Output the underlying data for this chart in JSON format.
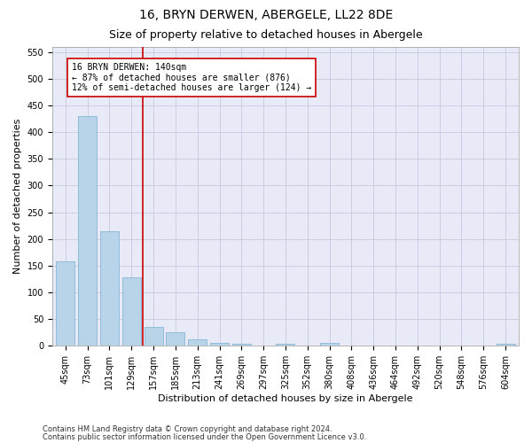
{
  "title": "16, BRYN DERWEN, ABERGELE, LL22 8DE",
  "subtitle": "Size of property relative to detached houses in Abergele",
  "xlabel": "Distribution of detached houses by size in Abergele",
  "ylabel": "Number of detached properties",
  "categories": [
    "45sqm",
    "73sqm",
    "101sqm",
    "129sqm",
    "157sqm",
    "185sqm",
    "213sqm",
    "241sqm",
    "269sqm",
    "297sqm",
    "325sqm",
    "352sqm",
    "380sqm",
    "408sqm",
    "436sqm",
    "464sqm",
    "492sqm",
    "520sqm",
    "548sqm",
    "576sqm",
    "604sqm"
  ],
  "values": [
    158,
    430,
    215,
    128,
    36,
    26,
    12,
    5,
    4,
    0,
    4,
    0,
    5,
    0,
    0,
    0,
    0,
    0,
    0,
    0,
    4
  ],
  "bar_color": "#b8d4e8",
  "bar_edge_color": "#7aaed0",
  "vline_x": 3.5,
  "vline_color": "#cc0000",
  "annotation_text": "16 BRYN DERWEN: 140sqm\n← 87% of detached houses are smaller (876)\n12% of semi-detached houses are larger (124) →",
  "annotation_box_color": "#cc0000",
  "ylim": [
    0,
    560
  ],
  "yticks": [
    0,
    50,
    100,
    150,
    200,
    250,
    300,
    350,
    400,
    450,
    500,
    550
  ],
  "plot_bg_color": "#e8eaf8",
  "grid_color": "#c0c4d8",
  "footer_line1": "Contains HM Land Registry data © Crown copyright and database right 2024.",
  "footer_line2": "Contains public sector information licensed under the Open Government Licence v3.0.",
  "title_fontsize": 10,
  "subtitle_fontsize": 9,
  "axis_label_fontsize": 8,
  "tick_fontsize": 7,
  "footer_fontsize": 6
}
